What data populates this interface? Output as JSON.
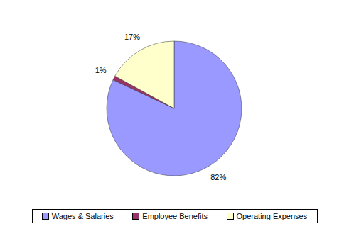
{
  "chart_data": {
    "type": "pie",
    "categories": [
      "Wages & Salaries",
      "Employee Benefits",
      "Operating Expenses"
    ],
    "values": [
      82,
      1,
      17
    ],
    "value_labels": [
      "82%",
      "1%",
      "17%"
    ],
    "colors": [
      "#9999ff",
      "#993366",
      "#ffffcc"
    ],
    "data_labels": true,
    "legend": "bottom"
  }
}
